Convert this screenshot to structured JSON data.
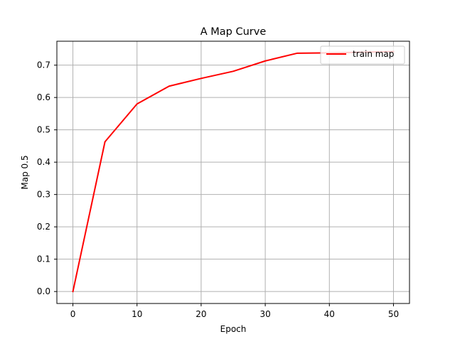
{
  "chart_data": {
    "type": "line",
    "title": "A Map Curve",
    "xlabel": "Epoch",
    "ylabel": "Map 0.5",
    "xlim": [
      -2.5,
      52.5
    ],
    "ylim": [
      -0.037,
      0.774
    ],
    "xticks": [
      0,
      10,
      20,
      30,
      40,
      50
    ],
    "yticks": [
      0.0,
      0.1,
      0.2,
      0.3,
      0.4,
      0.5,
      0.6,
      0.7
    ],
    "xtick_labels": [
      "0",
      "10",
      "20",
      "30",
      "40",
      "50"
    ],
    "ytick_labels": [
      "0.0",
      "0.1",
      "0.2",
      "0.3",
      "0.4",
      "0.5",
      "0.6",
      "0.7"
    ],
    "grid": true,
    "legend_position": "top-right",
    "series": [
      {
        "name": "train map",
        "color": "#ff0000",
        "x": [
          0,
          5,
          10,
          15,
          20,
          25,
          30,
          35,
          40,
          45,
          50
        ],
        "y": [
          0.0,
          0.463,
          0.58,
          0.635,
          0.659,
          0.681,
          0.713,
          0.737,
          0.738,
          0.74,
          0.742
        ]
      }
    ]
  }
}
